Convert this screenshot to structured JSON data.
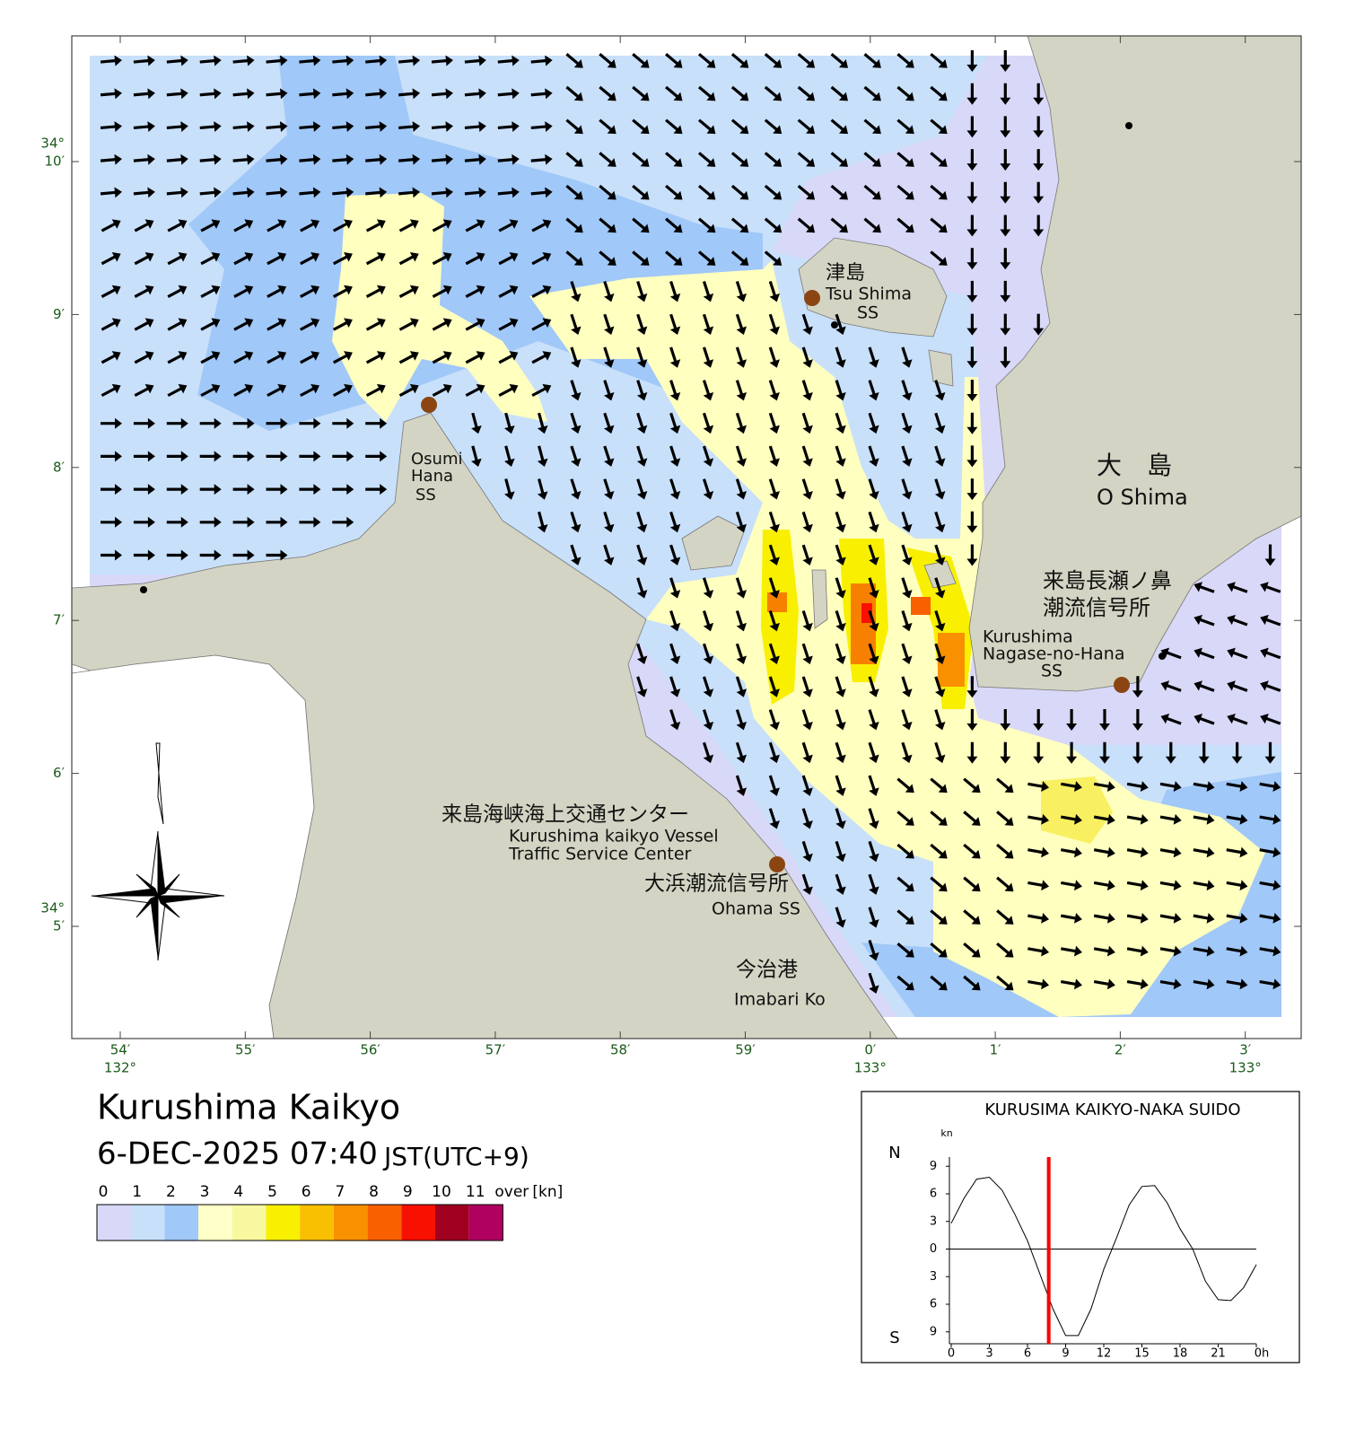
{
  "map": {
    "lat_labels": [
      [
        "34°",
        "10′"
      ],
      [
        "9′"
      ],
      [
        "8′"
      ],
      [
        "7′"
      ],
      [
        "6′"
      ],
      [
        "34°",
        "5′"
      ]
    ],
    "lon_labels": [
      [
        "54′",
        "132°"
      ],
      [
        "55′"
      ],
      [
        "56′"
      ],
      [
        "57′"
      ],
      [
        "58′"
      ],
      [
        "59′"
      ],
      [
        "0′",
        "133°"
      ],
      [
        "1′"
      ],
      [
        "2′"
      ],
      [
        "3′",
        "133°"
      ]
    ],
    "places": [
      {
        "lines": [
          "津島",
          "Tsu Shima",
          "SS"
        ]
      },
      {
        "lines": [
          "Osumi",
          "Hana",
          "SS"
        ]
      },
      {
        "lines": [
          "大　島",
          "O Shima"
        ]
      },
      {
        "lines": [
          "来島長瀬ノ鼻",
          "潮流信号所",
          "Kurushima",
          "Nagase-no-Hana",
          "SS"
        ]
      },
      {
        "lines": [
          "来島海峡海上交通センター",
          "Kurushima kaikyo Vessel",
          "Traffic Service Center"
        ]
      },
      {
        "lines": [
          "大浜潮流信号所",
          "Ohama SS"
        ]
      },
      {
        "lines": [
          "今治港",
          "Imabari Ko"
        ]
      }
    ]
  },
  "header": {
    "title": "Kurushima Kaikyo",
    "datetime": "6-DEC-2025 07:40",
    "timezone": "JST(UTC+9)"
  },
  "legend": {
    "ticks": [
      0,
      1,
      2,
      3,
      4,
      5,
      6,
      7,
      8,
      9,
      10,
      11
    ],
    "over": "over",
    "unit": "[kn]",
    "colors": [
      "#d8d8f8",
      "#c8e0fa",
      "#a0c8f8",
      "#ffffc8",
      "#f8f8a0",
      "#f8f000",
      "#f8c000",
      "#f89000",
      "#f86000",
      "#f81000",
      "#a00020",
      "#b00060"
    ]
  },
  "chart_data": {
    "type": "line",
    "title": "KURUSIMA KAIKYO-NAKA SUIDO",
    "y_unit": "kn",
    "y_top_label": "N",
    "y_bottom_label": "S",
    "x": [
      0,
      1,
      2,
      3,
      4,
      5,
      6,
      7,
      8,
      9,
      10,
      11,
      12,
      13,
      14,
      15,
      16,
      17,
      18,
      19,
      20,
      21,
      22,
      23,
      24
    ],
    "values": [
      2.8,
      5.5,
      7.6,
      7.8,
      6.4,
      3.8,
      0.9,
      -2.8,
      -6.5,
      -9.4,
      -9.4,
      -6.5,
      -2.2,
      1.2,
      4.8,
      6.8,
      6.9,
      5.0,
      2.2,
      0.0,
      -3.5,
      -5.5,
      -5.6,
      -4.2,
      -1.7
    ],
    "color": "#000000",
    "now": 7.67,
    "now_color": "#ff0000",
    "xlim": [
      0,
      24
    ],
    "ylim": [
      -10,
      10
    ],
    "xticks": [
      0,
      3,
      6,
      9,
      12,
      15,
      18,
      21,
      {
        "value": 24,
        "label": "0h"
      }
    ],
    "yticks": [
      9,
      6,
      3,
      0,
      {
        "value": -3,
        "label": "3"
      },
      {
        "value": -6,
        "label": "6"
      },
      {
        "value": -9,
        "label": "9"
      }
    ]
  }
}
